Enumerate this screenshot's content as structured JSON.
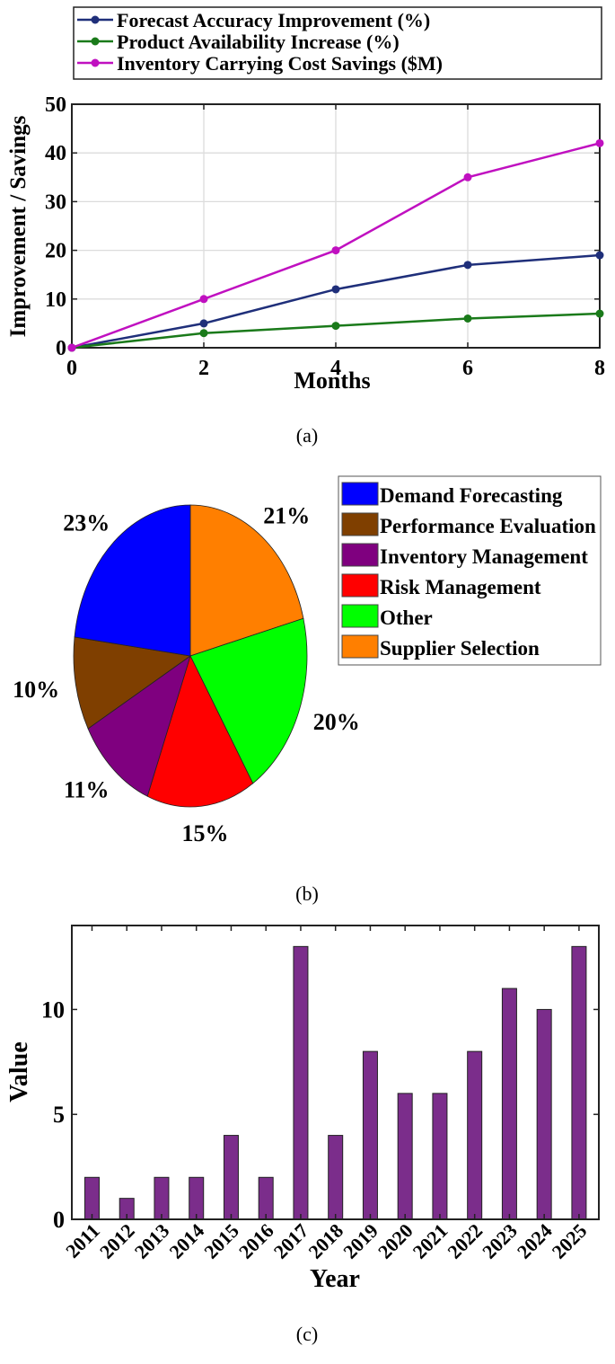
{
  "chart_data": [
    {
      "type": "line",
      "id": "a",
      "caption": "(a)",
      "title": "",
      "xlabel": "Months",
      "ylabel": "Improvement / Savings",
      "x": [
        0,
        2,
        4,
        6,
        8
      ],
      "xlim": [
        0,
        8
      ],
      "ylim": [
        0,
        50
      ],
      "xticks": [
        0,
        2,
        4,
        6,
        8
      ],
      "yticks": [
        0,
        10,
        20,
        30,
        40,
        50
      ],
      "grid": true,
      "legend_position": "top, outside",
      "series": [
        {
          "name": "Forecast Accuracy Improvement (%)",
          "color": "#1f2f7a",
          "values": [
            0,
            5,
            12,
            17,
            19
          ]
        },
        {
          "name": "Product Availability Increase (%)",
          "color": "#1a7a1a",
          "values": [
            0,
            3,
            4.5,
            6,
            7
          ]
        },
        {
          "name": "Inventory Carrying Cost Savings ($M)",
          "color": "#c010c0",
          "values": [
            0,
            10,
            20,
            35,
            42
          ]
        }
      ]
    },
    {
      "type": "pie",
      "id": "b",
      "caption": "(b)",
      "title": "",
      "legend_position": "right",
      "slices": [
        {
          "label": "Demand Forecasting",
          "value": 23,
          "display": "23%",
          "color": "#0000ff"
        },
        {
          "label": "Performance Evaluation",
          "value": 10,
          "display": "10%",
          "color": "#7f3f00"
        },
        {
          "label": "Inventory Management",
          "value": 11,
          "display": "11%",
          "color": "#7f007f"
        },
        {
          "label": "Risk Management",
          "value": 15,
          "display": "15%",
          "color": "#ff0000"
        },
        {
          "label": "Other",
          "value": 20,
          "display": "20%",
          "color": "#00ff00"
        },
        {
          "label": "Supplier Selection",
          "value": 21,
          "display": "21%",
          "color": "#ff7f00"
        }
      ]
    },
    {
      "type": "bar",
      "id": "c",
      "caption": "(c)",
      "title": "",
      "xlabel": "Year",
      "ylabel": "Value",
      "categories": [
        "2011",
        "2012",
        "2013",
        "2014",
        "2015",
        "2016",
        "2017",
        "2018",
        "2019",
        "2020",
        "2021",
        "2022",
        "2023",
        "2024",
        "2025"
      ],
      "values": [
        2,
        1,
        2,
        2,
        4,
        2,
        13,
        4,
        8,
        6,
        6,
        8,
        11,
        10,
        13
      ],
      "ylim": [
        0,
        14
      ],
      "yticks": [
        0,
        5,
        10
      ],
      "grid": false,
      "bar_color": "#7b2d8b"
    }
  ]
}
